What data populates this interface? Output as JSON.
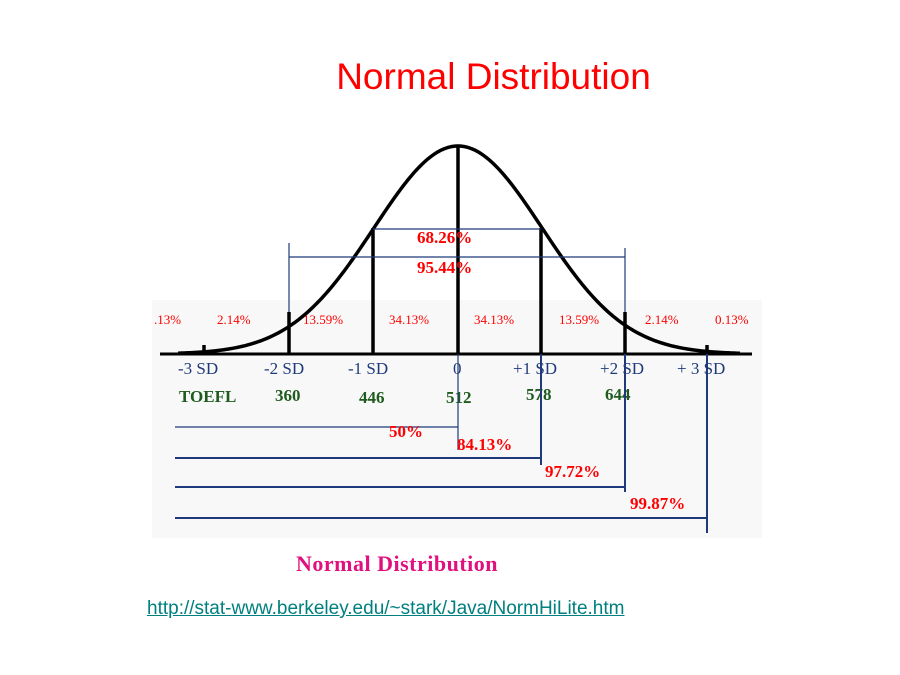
{
  "slide": {
    "title": "Normal Distribution",
    "caption": "Normal Distribution",
    "source_url": "http://stat-www.berkeley.edu/~stark/Java/NormHiLite.htm"
  },
  "colors": {
    "title": "#ff0000",
    "caption": "#e0117f",
    "link": "#007f7f",
    "curve": "#000000",
    "bracket": "#1f3a7a",
    "percent": "#ff0000",
    "score": "#1f5a1f"
  },
  "diagram": {
    "sd_labels": [
      "-3 SD",
      "-2 SD",
      "-1 SD",
      "0",
      "+1 SD",
      "+2 SD",
      "+ 3 SD"
    ],
    "region_percents": [
      ".13%",
      "2.14%",
      "13.59%",
      "34.13%",
      "34.13%",
      "13.59%",
      "2.14%",
      "0.13%"
    ],
    "range_labels": {
      "one_sd": "68.26%",
      "two_sd": "95.44%"
    },
    "scores": {
      "name": "TOEFL",
      "values": [
        "360",
        "446",
        "512",
        "578",
        "644"
      ]
    },
    "cumulative_percents": [
      "50%",
      "84.13%",
      "97.72%",
      "99.87%"
    ]
  }
}
